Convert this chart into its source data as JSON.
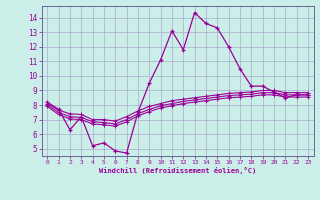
{
  "xlabel": "Windchill (Refroidissement éolien,°C)",
  "bg_color": "#cceee8",
  "grid_color": "#aaaacc",
  "line_color": "#990099",
  "xlim": [
    -0.5,
    23.5
  ],
  "ylim": [
    4.5,
    14.8
  ],
  "xticks": [
    0,
    1,
    2,
    3,
    4,
    5,
    6,
    7,
    8,
    9,
    10,
    11,
    12,
    13,
    14,
    15,
    16,
    17,
    18,
    19,
    20,
    21,
    22,
    23
  ],
  "yticks": [
    5,
    6,
    7,
    8,
    9,
    10,
    11,
    12,
    13,
    14
  ],
  "line1_x": [
    0,
    1,
    2,
    3,
    4,
    5,
    6,
    7,
    8,
    9,
    10,
    11,
    12,
    13,
    14,
    15,
    16,
    17,
    18,
    19,
    20,
    21,
    22,
    23
  ],
  "line1_y": [
    8.2,
    7.7,
    6.3,
    7.2,
    5.2,
    5.4,
    4.85,
    4.7,
    7.5,
    9.5,
    11.1,
    13.1,
    11.8,
    14.35,
    13.6,
    13.3,
    12.0,
    10.5,
    9.3,
    9.3,
    8.9,
    8.5,
    8.7,
    8.7
  ],
  "line2_x": [
    0,
    1,
    2,
    3,
    4,
    5,
    6,
    7,
    8,
    9,
    10,
    11,
    12,
    13,
    14,
    15,
    16,
    17,
    18,
    19,
    20,
    21,
    22,
    23
  ],
  "line2_y": [
    8.1,
    7.65,
    7.4,
    7.35,
    7.0,
    7.0,
    6.9,
    7.2,
    7.6,
    7.9,
    8.1,
    8.3,
    8.4,
    8.5,
    8.6,
    8.7,
    8.8,
    8.85,
    8.9,
    9.0,
    9.0,
    8.85,
    8.85,
    8.85
  ],
  "line3_x": [
    0,
    1,
    2,
    3,
    4,
    5,
    6,
    7,
    8,
    9,
    10,
    11,
    12,
    13,
    14,
    15,
    16,
    17,
    18,
    19,
    20,
    21,
    22,
    23
  ],
  "line3_y": [
    8.0,
    7.5,
    7.2,
    7.15,
    6.85,
    6.8,
    6.7,
    7.0,
    7.4,
    7.7,
    7.95,
    8.1,
    8.25,
    8.35,
    8.45,
    8.55,
    8.65,
    8.7,
    8.75,
    8.85,
    8.85,
    8.7,
    8.7,
    8.7
  ],
  "line4_x": [
    0,
    1,
    2,
    3,
    4,
    5,
    6,
    7,
    8,
    9,
    10,
    11,
    12,
    13,
    14,
    15,
    16,
    17,
    18,
    19,
    20,
    21,
    22,
    23
  ],
  "line4_y": [
    7.9,
    7.35,
    7.05,
    7.0,
    6.7,
    6.65,
    6.55,
    6.85,
    7.25,
    7.55,
    7.8,
    7.95,
    8.1,
    8.2,
    8.3,
    8.4,
    8.5,
    8.55,
    8.6,
    8.7,
    8.7,
    8.55,
    8.55,
    8.55
  ]
}
